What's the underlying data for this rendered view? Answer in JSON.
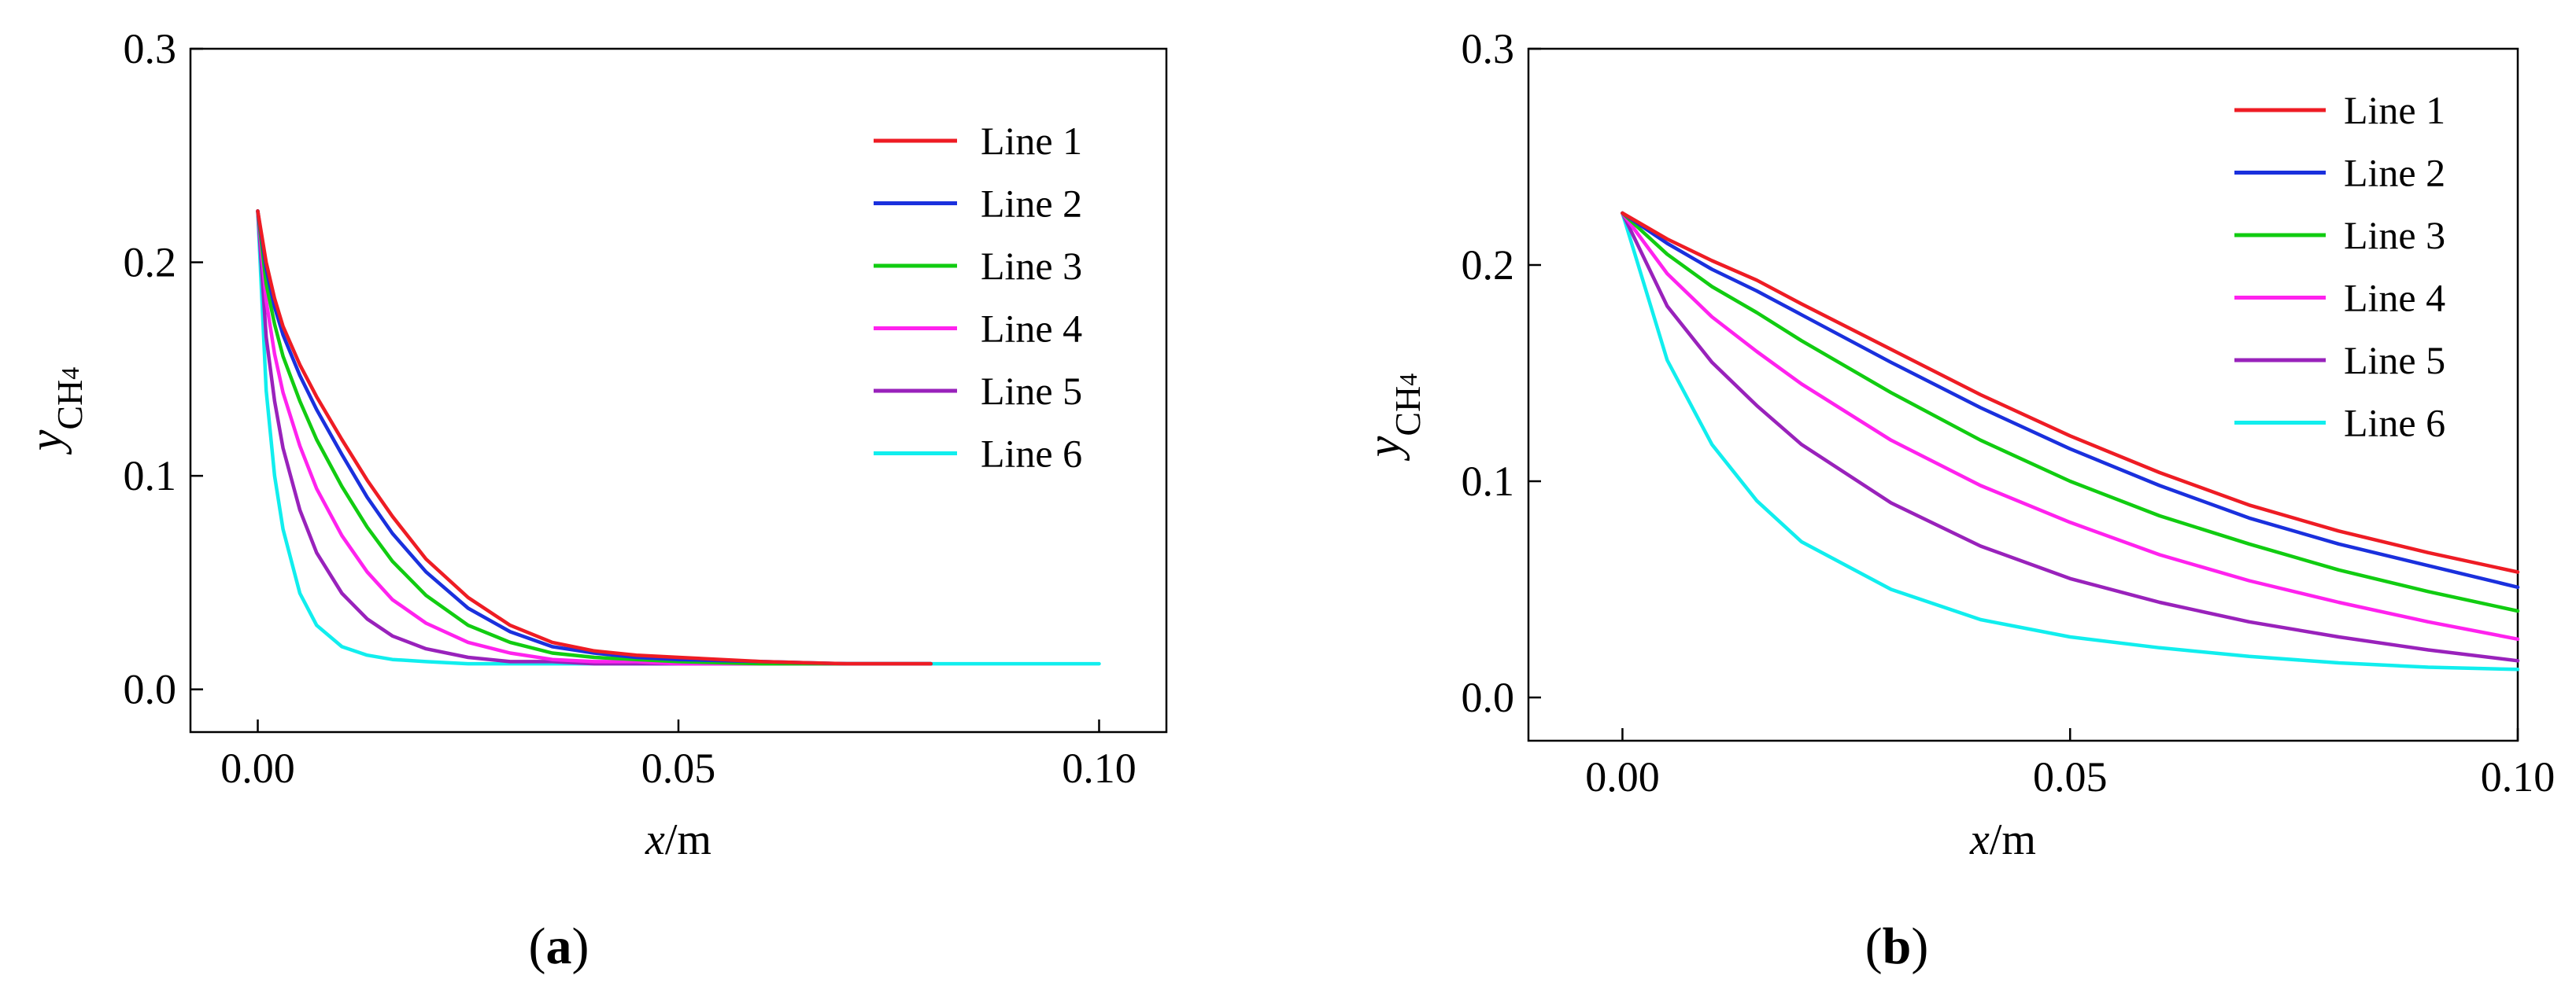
{
  "colors": {
    "Line 1": "#ee1c24",
    "Line 2": "#1a30dd",
    "Line 3": "#11cc11",
    "Line 4": "#ff22ee",
    "Line 5": "#9922bb",
    "Line 6": "#11eeee"
  },
  "chart_data": [
    {
      "panel_label": "a",
      "type": "line",
      "xlabel": "x/m",
      "ylabel": "yCH4",
      "xlim": [
        -0.008,
        0.108
      ],
      "ylim": [
        -0.02,
        0.3
      ],
      "xticks": [
        0.0,
        0.05,
        0.1
      ],
      "xtick_labels": [
        "0.00",
        "0.05",
        "0.10"
      ],
      "yticks": [
        0.0,
        0.1,
        0.2,
        0.3
      ],
      "ytick_labels": [
        "0.0",
        "0.1",
        "0.2",
        "0.3"
      ],
      "legend_position": "top-right",
      "x": [
        0,
        0.001,
        0.002,
        0.003,
        0.005,
        0.007,
        0.01,
        0.013,
        0.016,
        0.02,
        0.025,
        0.03,
        0.035,
        0.04,
        0.045,
        0.05,
        0.06,
        0.07,
        0.08
      ],
      "x_tail": [
        0.08,
        0.09,
        0.1
      ],
      "series": [
        {
          "name": "Line 1",
          "values": [
            0.224,
            0.2,
            0.183,
            0.17,
            0.152,
            0.137,
            0.117,
            0.098,
            0.081,
            0.061,
            0.043,
            0.03,
            0.022,
            0.018,
            0.016,
            0.015,
            0.013,
            0.012,
            0.012
          ]
        },
        {
          "name": "Line 2",
          "values": [
            0.224,
            0.197,
            0.179,
            0.166,
            0.147,
            0.131,
            0.11,
            0.09,
            0.073,
            0.055,
            0.038,
            0.027,
            0.02,
            0.017,
            0.015,
            0.014,
            0.013,
            0.012,
            0.012
          ]
        },
        {
          "name": "Line 3",
          "values": [
            0.224,
            0.19,
            0.171,
            0.156,
            0.135,
            0.117,
            0.095,
            0.076,
            0.06,
            0.044,
            0.03,
            0.022,
            0.017,
            0.015,
            0.014,
            0.013,
            0.012,
            0.012,
            0.012
          ]
        },
        {
          "name": "Line 4",
          "values": [
            0.224,
            0.182,
            0.157,
            0.139,
            0.114,
            0.094,
            0.072,
            0.055,
            0.042,
            0.031,
            0.022,
            0.017,
            0.014,
            0.013,
            0.013,
            0.012,
            0.012,
            0.012,
            0.012
          ]
        },
        {
          "name": "Line 5",
          "values": [
            0.224,
            0.165,
            0.135,
            0.113,
            0.084,
            0.064,
            0.045,
            0.033,
            0.025,
            0.019,
            0.015,
            0.013,
            0.013,
            0.012,
            0.012,
            0.012,
            0.012,
            0.012,
            0.012
          ]
        },
        {
          "name": "Line 6",
          "values": [
            0.224,
            0.14,
            0.1,
            0.075,
            0.045,
            0.03,
            0.02,
            0.016,
            0.014,
            0.013,
            0.012,
            0.012,
            0.012,
            0.012,
            0.012,
            0.012,
            0.012,
            0.012,
            0.012
          ],
          "tail_values": [
            0.012,
            0.012,
            0.012
          ]
        }
      ]
    },
    {
      "panel_label": "b",
      "type": "line",
      "xlabel": "x/m",
      "ylabel": "yCH4",
      "xlim": [
        -0.0105,
        0.1
      ],
      "ylim": [
        -0.02,
        0.3
      ],
      "xticks": [
        0.0,
        0.05,
        0.1
      ],
      "xtick_labels": [
        "0.00",
        "0.05",
        "0.10"
      ],
      "yticks": [
        0.0,
        0.1,
        0.2,
        0.3
      ],
      "ytick_labels": [
        "0.0",
        "0.1",
        "0.2",
        "0.3"
      ],
      "legend_position": "top-right",
      "x": [
        0,
        0.005,
        0.01,
        0.015,
        0.02,
        0.03,
        0.04,
        0.05,
        0.06,
        0.07,
        0.08,
        0.09,
        0.1
      ],
      "series": [
        {
          "name": "Line 1",
          "values": [
            0.224,
            0.212,
            0.202,
            0.193,
            0.182,
            0.161,
            0.14,
            0.121,
            0.104,
            0.089,
            0.077,
            0.067,
            0.058
          ]
        },
        {
          "name": "Line 2",
          "values": [
            0.224,
            0.21,
            0.198,
            0.188,
            0.177,
            0.155,
            0.134,
            0.115,
            0.098,
            0.083,
            0.071,
            0.061,
            0.051
          ]
        },
        {
          "name": "Line 3",
          "values": [
            0.224,
            0.205,
            0.19,
            0.178,
            0.165,
            0.141,
            0.119,
            0.1,
            0.084,
            0.071,
            0.059,
            0.049,
            0.04
          ]
        },
        {
          "name": "Line 4",
          "values": [
            0.224,
            0.196,
            0.176,
            0.16,
            0.145,
            0.119,
            0.098,
            0.081,
            0.066,
            0.054,
            0.044,
            0.035,
            0.027
          ]
        },
        {
          "name": "Line 5",
          "values": [
            0.224,
            0.181,
            0.155,
            0.135,
            0.117,
            0.09,
            0.07,
            0.055,
            0.044,
            0.035,
            0.028,
            0.022,
            0.017
          ]
        },
        {
          "name": "Line 6",
          "values": [
            0.224,
            0.156,
            0.117,
            0.091,
            0.072,
            0.05,
            0.036,
            0.028,
            0.023,
            0.019,
            0.016,
            0.014,
            0.013
          ]
        }
      ]
    }
  ]
}
